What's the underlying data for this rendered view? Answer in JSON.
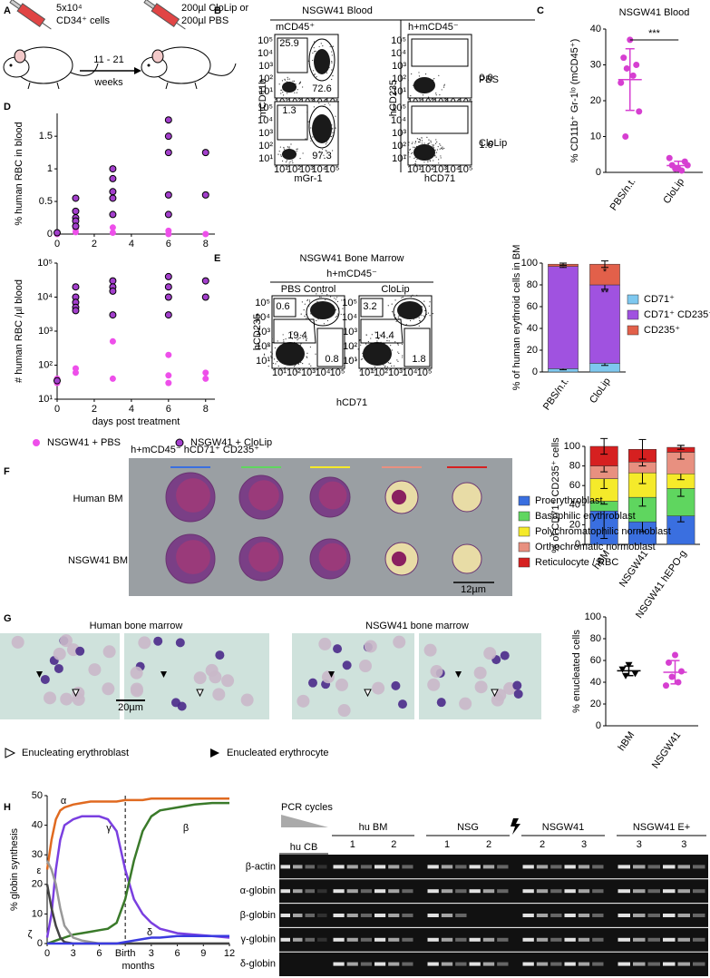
{
  "panel_labels": [
    "A",
    "B",
    "C",
    "D",
    "E",
    "F",
    "G",
    "H"
  ],
  "panel_a": {
    "cells": "5x10⁴",
    "cell_type": "CD34⁺ cells",
    "treatment": "200µl CloLip or",
    "treatment_alt": "200µl PBS",
    "duration": "11 - 21",
    "duration_unit": "weeks"
  },
  "flow_axis_ticks": [
    "10¹",
    "10²",
    "10³",
    "10⁴",
    "10⁵"
  ],
  "panel_b": {
    "title": "NSGW41 Blood",
    "gates": [
      "mCD45⁺",
      "h+mCD45⁻"
    ],
    "y_labels": [
      "mCD11b",
      "hCD235"
    ],
    "x_labels": [
      "mGr-1",
      "hCD71"
    ],
    "conditions": [
      "PBS",
      "CloLip"
    ],
    "frequencies": [
      [
        [
          25.9,
          72.6
        ],
        [
          "0.0"
        ]
      ],
      [
        [
          1.3,
          97.3
        ],
        [
          1.6
        ]
      ]
    ]
  },
  "panel_e_flow": {
    "title": "NSGW41 Bone Marrow",
    "gate": "h+mCD45⁻",
    "conditions": [
      "PBS Control",
      "CloLip"
    ],
    "y_label": "hCD235",
    "x_label": "hCD71",
    "frequencies": [
      [
        0.6,
        19.4,
        0.8
      ],
      [
        3.2,
        14.4,
        1.8
      ]
    ]
  },
  "panel_f_images": {
    "title": "h+mCD45⁻ hCD71⁺ CD235⁺",
    "rows": [
      "Human BM",
      "NSGW41 BM"
    ],
    "scale_bar": "12µm"
  },
  "panel_g_images": {
    "titles": [
      "Human bone marrow",
      "NSGW41 bone marrow"
    ],
    "scale_bar": "20µm",
    "legend": [
      "Enucleating erythroblast",
      "Enucleated erythrocyte"
    ]
  },
  "panel_h_gel": {
    "pcr_label": "PCR cycles",
    "groups": [
      {
        "name": "hu CB",
        "samples": []
      },
      {
        "name": "hu BM",
        "samples": [
          1,
          2
        ]
      },
      {
        "name": "NSG",
        "samples": [
          1,
          2
        ]
      },
      {
        "name": "NSGW41",
        "samples": [
          2,
          3
        ]
      },
      {
        "name": "NSGW41 E+",
        "samples": [
          3,
          3
        ]
      }
    ],
    "genes": [
      "β-actin",
      "α-globin",
      "β-globin",
      "γ-globin",
      "δ-globin"
    ]
  },
  "chart_data": [
    {
      "type": "dot",
      "title": "NSGW41 Blood",
      "y_label": "% CD11b⁺ Gr-1ˡᵒ (mCD45⁺)",
      "categories": [
        "PBS/n.t.",
        "CloLip"
      ],
      "values": [
        [
          37,
          32,
          30,
          29,
          27,
          25,
          17,
          10
        ],
        [
          1,
          2,
          3,
          1,
          0.5,
          4,
          2
        ]
      ],
      "means": [
        25.9,
        1.9
      ],
      "sds": [
        8.6,
        1.2
      ],
      "colors": [
        "#d63fd1",
        "#d63fd1"
      ],
      "markers": [
        "circle",
        "circle"
      ],
      "ylim": [
        0,
        40
      ],
      "yticks": [
        0,
        10,
        20,
        30,
        40
      ],
      "significance": "***"
    },
    {
      "type": "scatter",
      "y_label": "% human RBC in blood",
      "xlim": [
        0,
        8.5
      ],
      "xticks": [
        0,
        2,
        4,
        6,
        8
      ],
      "ylim": [
        0,
        1.85
      ],
      "yticks": [
        0,
        0.5,
        1,
        1.5
      ],
      "series": [
        {
          "name": "NSGW41 + PBS",
          "color": "#ee4fea",
          "edge_color": null,
          "x": [
            0,
            0,
            0,
            1,
            1,
            1,
            3,
            3,
            6,
            6,
            8
          ],
          "values": [
            0.02,
            0,
            0.01,
            0.12,
            0.08,
            0.03,
            0.1,
            0.02,
            0.05,
            0,
            0
          ]
        },
        {
          "name": "NSGW41 + CloLip",
          "color": "#a33fcc",
          "edge_color": "#000000",
          "x": [
            0,
            1,
            1,
            1,
            1,
            1,
            3,
            3,
            3,
            3,
            3,
            6,
            6,
            6,
            6,
            6,
            8,
            8
          ],
          "values": [
            0.02,
            0.55,
            0.35,
            0.25,
            0.2,
            0.12,
            1,
            0.85,
            0.65,
            0.55,
            0.3,
            1.75,
            1.5,
            1.25,
            0.6,
            0.3,
            1.25,
            0.6
          ]
        }
      ]
    },
    {
      "type": "scatter",
      "y_label": "# human RBC /µl blood",
      "x_label": "days post treatment",
      "log_scale": true,
      "xlim": [
        0,
        8.5
      ],
      "xticks": [
        0,
        2,
        4,
        6,
        8
      ],
      "ylim": [
        10,
        100000
      ],
      "yticks": [
        {
          "value": 10,
          "label": "10¹"
        },
        {
          "value": 100,
          "label": "10²"
        },
        {
          "value": 1000,
          "label": "10³"
        },
        {
          "value": 10000,
          "label": "10⁴"
        },
        {
          "value": 100000,
          "label": "10⁵"
        }
      ],
      "series": [
        {
          "color": "#ee4fea",
          "edge_color": null,
          "x": [
            0,
            0,
            1,
            1,
            3,
            3,
            6,
            6,
            6,
            8,
            8
          ],
          "values": [
            30,
            40,
            60,
            80,
            500,
            40,
            200,
            50,
            30,
            60,
            40
          ]
        },
        {
          "color": "#a33fcc",
          "edge_color": "#000000",
          "x": [
            0,
            1,
            1,
            1,
            1,
            1,
            3,
            3,
            3,
            3,
            6,
            6,
            6,
            6,
            8,
            8
          ],
          "values": [
            35,
            20000,
            10000,
            7000,
            5000,
            4000,
            30000,
            20000,
            15000,
            3000,
            40000,
            20000,
            10000,
            3000,
            30000,
            10000
          ]
        }
      ]
    },
    {
      "type": "stacked_bar",
      "y_label": "% of human erythroid cells in BM",
      "categories": [
        "PBS/n.t.",
        "CloLip"
      ],
      "ylim": [
        0,
        100
      ],
      "yticks": [
        0,
        20,
        40,
        60,
        80,
        100
      ],
      "series": [
        {
          "name": "CD71⁺",
          "color": "#7ec8ef",
          "values": [
            3,
            8
          ],
          "errors": [
            1,
            2
          ],
          "marks": [
            null,
            "*"
          ]
        },
        {
          "name": "CD71⁺ CD235⁺",
          "color": "#a052e0",
          "values": [
            94,
            72
          ],
          "errors": [
            1,
            4
          ],
          "marks": [
            null,
            "**"
          ]
        },
        {
          "name": "CD235⁺",
          "color": "#e2604a",
          "values": [
            2,
            19
          ],
          "errors": [
            1,
            3
          ],
          "marks": [
            null,
            "*"
          ]
        }
      ]
    },
    {
      "type": "stacked_bar",
      "y_label": "% of CD71⁺ CD235⁺ cells",
      "categories": [
        "hBM",
        "NSGW41",
        "NSGW41 hEPO-g"
      ],
      "category_colors": [
        "#000000",
        "#c81fc8",
        "#1c1c96"
      ],
      "ylim": [
        0,
        100
      ],
      "yticks": [
        0,
        20,
        40,
        60,
        80,
        100
      ],
      "series": [
        {
          "name": "Proerythroblast",
          "color": "#3a6fe0",
          "values": [
            34,
            23,
            29
          ],
          "errors": [
            28,
            10,
            6
          ]
        },
        {
          "name": "Basophilic erythroblast",
          "color": "#5fd65f",
          "values": [
            10,
            25,
            28
          ],
          "errors": [
            3,
            9,
            8
          ]
        },
        {
          "name": "Polychromatophilic normoblast",
          "color": "#f5ea2a",
          "values": [
            23,
            25,
            15
          ],
          "errors": [
            10,
            11,
            6
          ]
        },
        {
          "name": "Orthochromatic normoblast",
          "color": "#e89080",
          "values": [
            13,
            11,
            22
          ],
          "errors": [
            6,
            4,
            7
          ]
        },
        {
          "name": "Reticulocyte / RBC",
          "color": "#d62020",
          "values": [
            20,
            13,
            5
          ],
          "errors": [
            8,
            10,
            2
          ]
        }
      ]
    },
    {
      "type": "dot",
      "y_label": "% enucleated cells",
      "categories": [
        "hBM",
        "NSGW41"
      ],
      "category_colors": [
        "#000000",
        "#c81fc8"
      ],
      "values": [
        [
          56,
          52,
          48,
          46
        ],
        [
          65,
          58,
          50,
          45,
          40,
          37
        ]
      ],
      "means": [
        50.5,
        49.2
      ],
      "sds": [
        4.4,
        10.7
      ],
      "colors": [
        "#000000",
        "#d63fd1"
      ],
      "markers": [
        "triangle",
        "circle"
      ],
      "ylim": [
        0,
        100
      ],
      "yticks": [
        0,
        20,
        40,
        60,
        80,
        100
      ]
    },
    {
      "type": "line",
      "y_label": "% globin synthesis",
      "x_label": "months",
      "marker_line": 9,
      "x": [
        0,
        0.5,
        1,
        1.5,
        2,
        3,
        4,
        5,
        6,
        7,
        8,
        9,
        10,
        11,
        12,
        13,
        15,
        17,
        19,
        21
      ],
      "xlim": [
        0,
        21
      ],
      "xticks": [
        0,
        3,
        6,
        {
          "value": 9,
          "label": "Birth"
        },
        {
          "value": 12,
          "label": "3"
        },
        {
          "value": 15,
          "label": "6"
        },
        {
          "value": 18,
          "label": "9"
        },
        {
          "value": 21,
          "label": "12"
        }
      ],
      "ylim": [
        0,
        50
      ],
      "yticks": [
        0,
        10,
        20,
        30,
        40,
        50
      ],
      "series": [
        {
          "name": "α",
          "color": "#e06a20",
          "values": [
            25,
            35,
            42,
            45,
            46,
            47,
            47.5,
            48,
            48,
            48,
            48,
            48.5,
            48.5,
            48.5,
            49,
            49,
            49,
            49,
            49,
            49
          ]
        },
        {
          "name": "γ",
          "color": "#7a3fe0",
          "values": [
            2,
            10,
            25,
            35,
            40,
            42,
            43,
            43,
            43,
            42,
            38,
            25,
            15,
            10,
            7,
            5,
            3.5,
            3,
            2.5,
            2
          ]
        },
        {
          "name": "β",
          "color": "#3a7a2a",
          "values": [
            0,
            0.5,
            1,
            1.5,
            2,
            3,
            3.5,
            4,
            4.5,
            5,
            7,
            15,
            28,
            38,
            43,
            45,
            46,
            47,
            47.5,
            47.5
          ]
        },
        {
          "name": "ε",
          "color": "#999999",
          "values": [
            28,
            25,
            20,
            12,
            6,
            2,
            1,
            0.5,
            0,
            0,
            0,
            0,
            0,
            0,
            0,
            0,
            0,
            0,
            0,
            0
          ]
        },
        {
          "name": "ζ",
          "color": "#444444",
          "values": [
            20,
            12,
            6,
            2,
            0.5,
            0,
            0,
            0,
            0,
            0,
            0,
            0,
            0,
            0,
            0,
            0,
            0,
            0,
            0,
            0
          ]
        },
        {
          "name": "δ",
          "color": "#3b3be0",
          "values": [
            0,
            0,
            0,
            0,
            0,
            0,
            0,
            0,
            0,
            0,
            0,
            0.5,
            1,
            1.5,
            2,
            2,
            2.5,
            2.5,
            2.5,
            2.5
          ]
        }
      ]
    }
  ]
}
